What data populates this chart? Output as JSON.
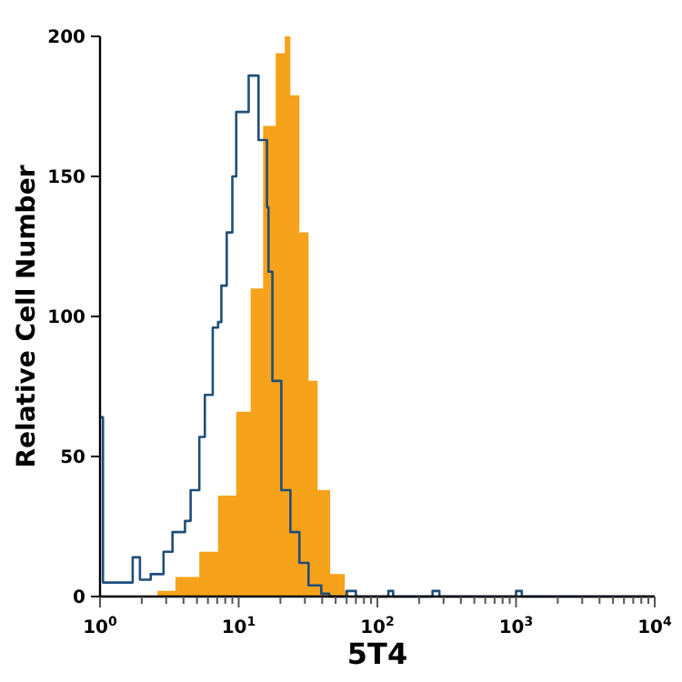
{
  "chart_data": {
    "type": "area",
    "xlabel": "5T4",
    "ylabel": "Relative Cell Number",
    "log": "x",
    "xlim": [
      1,
      10000
    ],
    "ylim": [
      0,
      200
    ],
    "xticks": [
      {
        "value": 1,
        "label": "10$^{0}$"
      },
      {
        "value": 2,
        "label": null
      },
      {
        "value": 3,
        "label": null
      },
      {
        "value": 4,
        "label": null
      },
      {
        "value": 5,
        "label": null
      },
      {
        "value": 6,
        "label": null
      },
      {
        "value": 7,
        "label": null
      },
      {
        "value": 8,
        "label": null
      },
      {
        "value": 9,
        "label": null
      },
      {
        "value": 10,
        "label": "10$^{1}$"
      },
      {
        "value": 20,
        "label": null
      },
      {
        "value": 30,
        "label": null
      },
      {
        "value": 40,
        "label": null
      },
      {
        "value": 50,
        "label": null
      },
      {
        "value": 60,
        "label": null
      },
      {
        "value": 70,
        "label": null
      },
      {
        "value": 80,
        "label": null
      },
      {
        "value": 90,
        "label": null
      },
      {
        "value": 100,
        "label": "10$^{2}$"
      },
      {
        "value": 200,
        "label": null
      },
      {
        "value": 300,
        "label": null
      },
      {
        "value": 400,
        "label": null
      },
      {
        "value": 500,
        "label": null
      },
      {
        "value": 600,
        "label": null
      },
      {
        "value": 700,
        "label": null
      },
      {
        "value": 800,
        "label": null
      },
      {
        "value": 900,
        "label": null
      },
      {
        "value": 1000,
        "label": "10$^{3}$"
      },
      {
        "value": 2000,
        "label": null
      },
      {
        "value": 3000,
        "label": null
      },
      {
        "value": 4000,
        "label": null
      },
      {
        "value": 5000,
        "label": null
      },
      {
        "value": 6000,
        "label": null
      },
      {
        "value": 7000,
        "label": null
      },
      {
        "value": 8000,
        "label": null
      },
      {
        "value": 9000,
        "label": null
      },
      {
        "value": 10000,
        "label": "10$^{4}$"
      }
    ],
    "yticks": [
      0,
      50,
      100,
      150,
      200
    ],
    "series": [
      {
        "color": "#f7a21b",
        "x": [
          2.0,
          2.6,
          3.5,
          5.2,
          7.1,
          9.6,
          12.2,
          15.0,
          18.5,
          21.5,
          23.6,
          27.4,
          31.9,
          37.1,
          45.7,
          58.2,
          62
        ],
        "values": [
          0,
          2,
          7,
          16,
          36,
          66,
          110,
          168,
          194,
          200,
          179,
          130,
          77,
          38,
          8,
          2,
          0
        ]
      },
      {
        "type": "step",
        "color": "#1f4e79",
        "x": [
          1.0,
          1.05,
          1.72,
          1.94,
          2.32,
          2.87,
          3.33,
          4.1,
          4.5,
          5.2,
          5.7,
          6.5,
          7.1,
          7.5,
          8.2,
          9.0,
          9.6,
          11.1,
          11.8,
          13.7,
          13.9,
          16.0,
          16.4,
          17.5,
          20.3,
          23.6,
          27.4,
          31.9,
          39.4,
          45,
          60,
          70,
          120,
          130,
          250,
          280,
          1000,
          1100,
          10000
        ],
        "values": [
          64,
          5,
          14,
          6,
          8,
          16,
          23,
          27,
          38,
          57,
          72,
          96,
          98,
          111,
          130,
          150,
          173,
          173,
          186,
          186,
          163,
          139,
          116,
          77,
          38,
          23,
          12,
          4,
          1,
          0,
          2,
          0,
          2,
          0,
          2,
          0,
          2,
          0,
          0
        ]
      }
    ]
  }
}
